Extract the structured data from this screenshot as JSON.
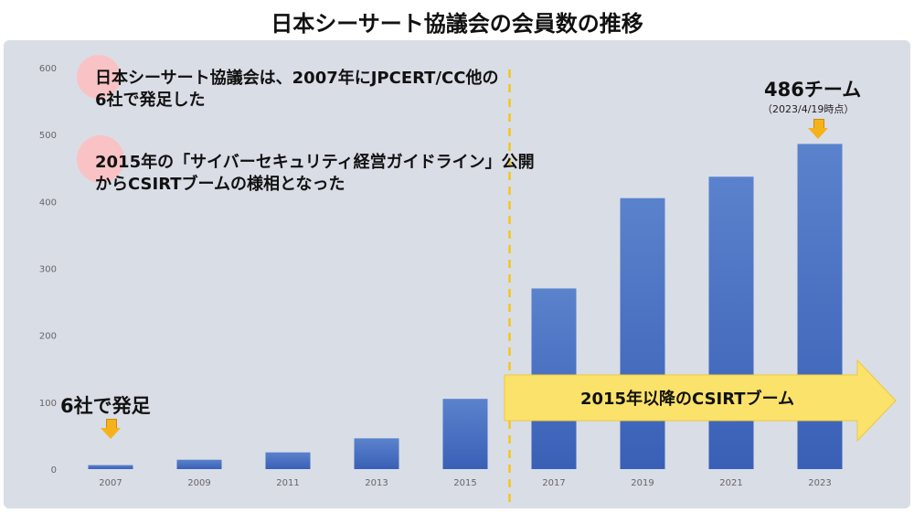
{
  "title": "日本シーサート協議会の会員数の推移",
  "notes": [
    "日本シーサート協議会は、2007年にJPCERT/CC他の\n6社で発足した",
    "2015年の「サイバーセキュリティ経営ガイドライン」公開\nからCSIRTブームの様相となった"
  ],
  "callout_start": "6社で発足",
  "callout_end_main": "486チーム",
  "callout_end_sub": "（2023/4/19時点）",
  "boom_label": "2015年以降のCSIRTブーム",
  "colors": {
    "bar_top": "#5b82cc",
    "bar_bottom": "#3960b6",
    "divider": "#f5c518",
    "boom_arrow": "#fbe26a",
    "arrow": "#f6b21b"
  },
  "chart_data": {
    "type": "bar",
    "title": "日本シーサート協議会の会員数の推移",
    "categories": [
      "2007",
      "2009",
      "2011",
      "2013",
      "2015",
      "2017",
      "2019",
      "2021",
      "2023"
    ],
    "values": [
      6,
      14,
      25,
      46,
      105,
      270,
      405,
      437,
      486
    ],
    "ylim": [
      0,
      600
    ],
    "yticks": [
      0,
      100,
      200,
      300,
      400,
      500,
      600
    ],
    "grid": false
  }
}
